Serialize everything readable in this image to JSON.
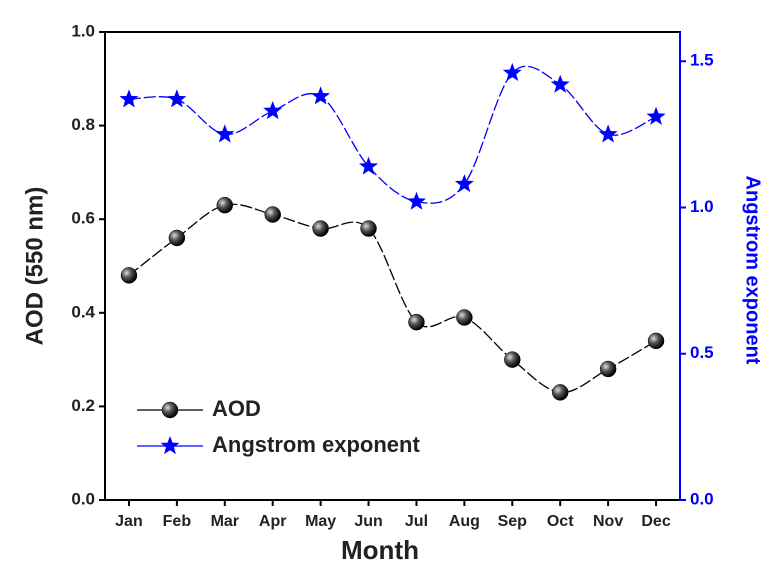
{
  "chart_data": {
    "type": "line",
    "x_label": "Month",
    "y_label": "AOD (550 nm)",
    "y2_label": "Angstrom exponent",
    "categories": [
      "Jan",
      "Feb",
      "Mar",
      "Apr",
      "May",
      "Jun",
      "Jul",
      "Aug",
      "Sep",
      "Oct",
      "Nov",
      "Dec"
    ],
    "series": [
      {
        "name": "AOD",
        "color": "#000000",
        "marker": "circle",
        "values": [
          0.48,
          0.56,
          0.63,
          0.61,
          0.58,
          0.58,
          0.38,
          0.39,
          0.3,
          0.23,
          0.28,
          0.34
        ]
      },
      {
        "name": "Angstrom exponent",
        "color": "#0000ff",
        "marker": "star",
        "axis": "y2",
        "values": [
          1.37,
          1.37,
          1.25,
          1.33,
          1.38,
          1.14,
          1.02,
          1.08,
          1.46,
          1.42,
          1.25,
          1.31
        ]
      }
    ],
    "ylim": [
      0,
      1
    ],
    "yticks": [
      {
        "value": 0,
        "label": "0.0"
      },
      0.2,
      0.4,
      0.6,
      0.8,
      {
        "value": 1,
        "label": "1.0"
      }
    ],
    "y2lim": [
      0,
      1.6
    ],
    "y2ticks": [
      {
        "value": 0,
        "label": "0.0"
      },
      0.5,
      {
        "value": 1,
        "label": "1.0"
      },
      1.5
    ],
    "y2_color": "#0000ff",
    "legend": "lower left"
  }
}
